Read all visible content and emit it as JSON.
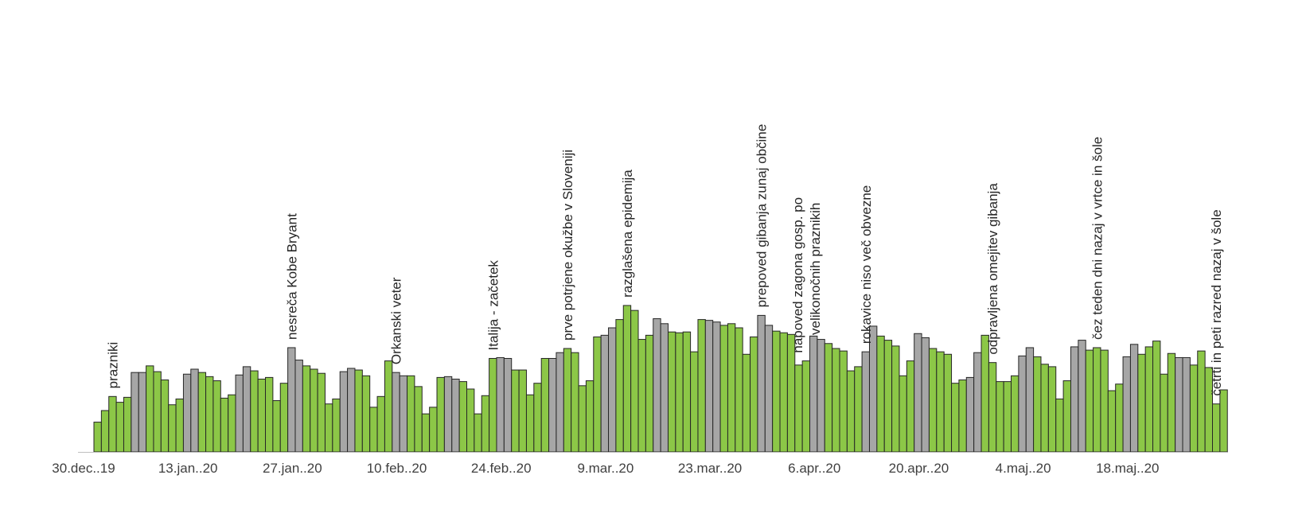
{
  "chart_data": {
    "type": "bar",
    "title": "",
    "xlabel": "",
    "ylabel": "",
    "ylim": [
      0,
      450
    ],
    "grid": false,
    "legend": "none",
    "colors": {
      "weekday": "#8cc747",
      "weekend": "#a6a6a6",
      "outline": "#262626"
    },
    "start_date": "30.dec..19",
    "x_tick_labels": [
      "30.dec..19",
      "13.jan..20",
      "27.jan..20",
      "10.feb..20",
      "24.feb..20",
      "9.mar..20",
      "23.mar..20",
      "6.apr..20",
      "20.apr..20",
      "4.maj..20",
      "18.maj..20"
    ],
    "values": [
      36,
      50,
      67,
      60,
      66,
      96,
      96,
      104,
      97,
      87,
      57,
      64,
      94,
      100,
      96,
      91,
      86,
      65,
      69,
      93,
      103,
      98,
      88,
      90,
      62,
      83,
      126,
      111,
      104,
      100,
      95,
      58,
      64,
      97,
      101,
      99,
      92,
      54,
      67,
      110,
      96,
      92,
      92,
      79,
      46,
      54,
      90,
      91,
      88,
      85,
      76,
      46,
      68,
      113,
      114,
      113,
      99,
      99,
      69,
      83,
      113,
      113,
      120,
      125,
      120,
      80,
      86,
      139,
      141,
      150,
      160,
      177,
      171,
      136,
      141,
      161,
      155,
      145,
      144,
      145,
      121,
      160,
      159,
      157,
      153,
      155,
      150,
      118,
      139,
      165,
      153,
      146,
      144,
      142,
      105,
      110,
      140,
      136,
      131,
      125,
      122,
      98,
      103,
      121,
      152,
      140,
      135,
      128,
      92,
      110,
      143,
      138,
      125,
      121,
      118,
      83,
      87,
      90,
      120,
      141,
      108,
      85,
      85,
      92,
      116,
      126,
      115,
      106,
      103,
      64,
      86,
      127,
      135,
      123,
      126,
      123,
      74,
      82,
      115,
      130,
      118,
      127,
      134,
      94,
      119,
      114,
      114,
      105,
      122,
      102,
      58,
      75
    ],
    "weekend_flags": [
      0,
      0,
      0,
      0,
      0,
      1,
      1,
      0,
      0,
      0,
      0,
      0,
      1,
      1,
      0,
      0,
      0,
      0,
      0,
      1,
      1,
      0,
      0,
      0,
      0,
      0,
      1,
      1,
      0,
      0,
      0,
      0,
      0,
      1,
      1,
      0,
      0,
      0,
      0,
      0,
      1,
      1,
      0,
      0,
      0,
      0,
      0,
      1,
      1,
      0,
      0,
      0,
      0,
      0,
      1,
      1,
      0,
      0,
      0,
      0,
      0,
      1,
      1,
      0,
      0,
      0,
      0,
      0,
      1,
      1,
      0,
      0,
      0,
      0,
      0,
      1,
      1,
      0,
      0,
      0,
      0,
      0,
      1,
      1,
      0,
      0,
      0,
      0,
      0,
      1,
      1,
      0,
      0,
      0,
      0,
      0,
      1,
      1,
      0,
      0,
      0,
      0,
      0,
      1,
      1,
      0,
      0,
      0,
      0,
      0,
      1,
      1,
      0,
      0,
      0,
      0,
      0,
      1,
      1,
      0,
      0,
      0,
      0,
      0,
      1,
      1,
      0,
      0,
      0,
      0,
      0,
      1,
      1,
      0,
      0,
      0,
      0,
      0,
      1,
      1,
      0,
      0,
      0,
      0,
      0,
      1,
      1,
      0,
      0,
      0,
      0,
      0,
      1,
      1
    ],
    "annotations": [
      {
        "day": 2,
        "lines": [
          "prazniki"
        ]
      },
      {
        "day": 26,
        "lines": [
          "nesreča Kobe Bryant"
        ]
      },
      {
        "day": 40,
        "lines": [
          "Orkanski veter"
        ]
      },
      {
        "day": 53,
        "lines": [
          "Italija - začetek"
        ]
      },
      {
        "day": 63,
        "lines": [
          "prve potrjene okužbe v Sloveniji"
        ]
      },
      {
        "day": 71,
        "lines": [
          "razglašena epidemija"
        ]
      },
      {
        "day": 89,
        "lines": [
          "prepoved gibanja zunaj občine"
        ]
      },
      {
        "day": 95,
        "lines": [
          "napoved zagona gosp. po",
          "velikonočnih praznikih"
        ]
      },
      {
        "day": 103,
        "lines": [
          "rokavice niso več obvezne"
        ]
      },
      {
        "day": 120,
        "lines": [
          "odpravljena omejitev gibanja"
        ]
      },
      {
        "day": 134,
        "lines": [
          "čez teden dni nazaj v vrtce in šole"
        ]
      },
      {
        "day": 150,
        "lines": [
          "četrti in peti razred nazaj v šole"
        ]
      }
    ]
  }
}
